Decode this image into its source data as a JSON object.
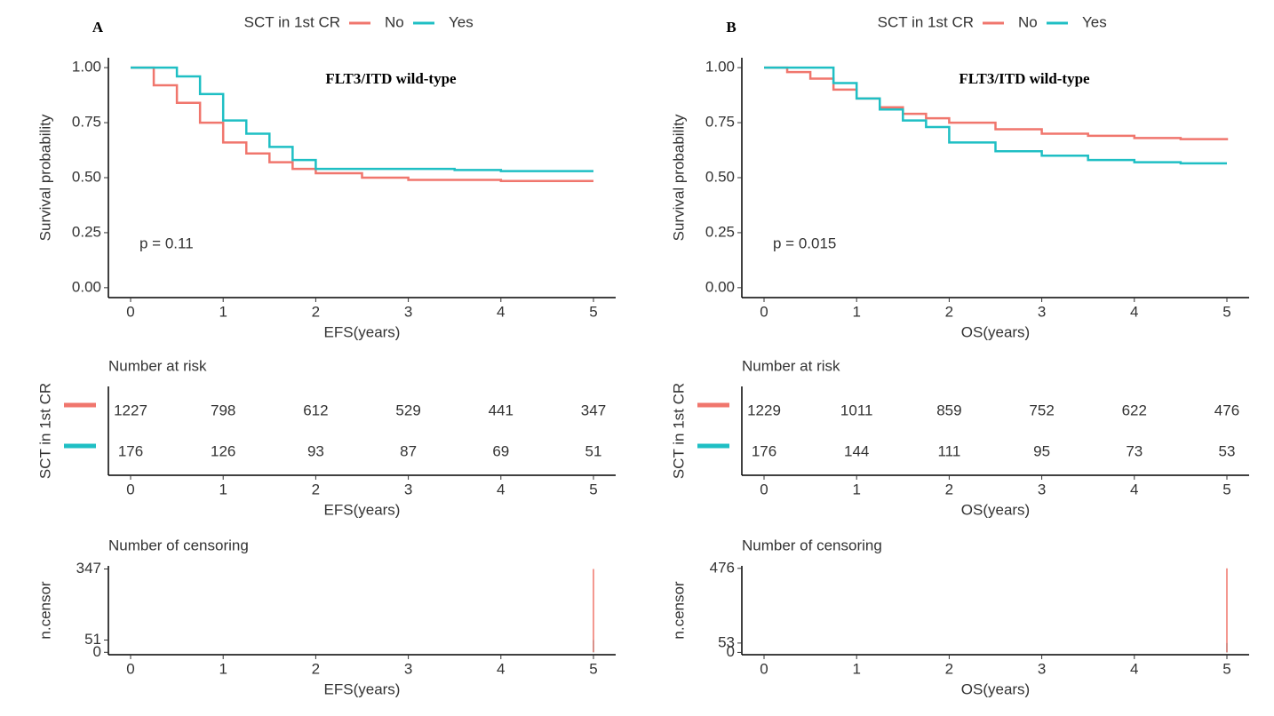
{
  "chart_data": [
    {
      "type": "step",
      "panel_label": "A",
      "title": "FLT3/ITD wild-type",
      "legend_title": "SCT in 1st CR",
      "annotation": "p = 0.11",
      "xlabel": "EFS(years)",
      "ylabel": "Survival probability",
      "xlim": [
        -0.24,
        5.24
      ],
      "xticks": [
        0,
        1,
        2,
        3,
        4,
        5
      ],
      "ylim": [
        -0.045,
        1.045
      ],
      "yticks": [
        {
          "value": 0,
          "label": "0.00"
        },
        {
          "value": 0.25,
          "label": "0.25"
        },
        {
          "value": 0.5,
          "label": "0.50"
        },
        {
          "value": 0.75,
          "label": "0.75"
        },
        {
          "value": 1,
          "label": "1.00"
        }
      ],
      "x": [
        0,
        0.25,
        0.5,
        0.75,
        1,
        1.25,
        1.5,
        1.75,
        2,
        2.5,
        3,
        3.5,
        4,
        4.5,
        5
      ],
      "series": [
        {
          "name": "No",
          "color": "#f0766d",
          "values": [
            1.0,
            0.92,
            0.84,
            0.75,
            0.66,
            0.61,
            0.57,
            0.54,
            0.52,
            0.5,
            0.49,
            0.49,
            0.485,
            0.485,
            0.485
          ]
        },
        {
          "name": "Yes",
          "color": "#1fbfc4",
          "values": [
            1.0,
            1.0,
            0.96,
            0.88,
            0.76,
            0.7,
            0.64,
            0.58,
            0.54,
            0.54,
            0.54,
            0.535,
            0.53,
            0.53,
            0.53
          ]
        }
      ]
    },
    {
      "type": "table",
      "title": "Number at risk",
      "xlabel": "EFS(years)",
      "ylabel": "SCT in 1st CR",
      "xlim": [
        -0.24,
        5.24
      ],
      "xticks": [
        0,
        1,
        2,
        3,
        4,
        5
      ],
      "x": [
        0,
        1,
        2,
        3,
        4,
        5
      ],
      "series": [
        {
          "color": "#f0766d",
          "values": [
            1227,
            798,
            612,
            529,
            441,
            347
          ]
        },
        {
          "color": "#1fbfc4",
          "values": [
            176,
            126,
            93,
            87,
            69,
            51
          ]
        }
      ]
    },
    {
      "type": "bar",
      "title": "Number of censoring",
      "xlabel": "EFS(years)",
      "ylabel": "n.censor",
      "xlim": [
        -0.24,
        5.24
      ],
      "xticks": [
        0,
        1,
        2,
        3,
        4,
        5
      ],
      "ylim": [
        -10,
        360
      ],
      "yticks": [
        0,
        51,
        347
      ],
      "x": [
        5
      ],
      "series": [
        {
          "color": "#1fbfc4",
          "values": [
            51
          ]
        },
        {
          "color": "#f0766d",
          "values": [
            347
          ]
        }
      ]
    },
    {
      "type": "step",
      "panel_label": "B",
      "title": "FLT3/ITD wild-type",
      "legend_title": "SCT in 1st CR",
      "annotation": "p = 0.015",
      "xlabel": "OS(years)",
      "ylabel": "Survival probability",
      "xlim": [
        -0.24,
        5.24
      ],
      "xticks": [
        0,
        1,
        2,
        3,
        4,
        5
      ],
      "ylim": [
        -0.045,
        1.045
      ],
      "yticks": [
        {
          "value": 0,
          "label": "0.00"
        },
        {
          "value": 0.25,
          "label": "0.25"
        },
        {
          "value": 0.5,
          "label": "0.50"
        },
        {
          "value": 0.75,
          "label": "0.75"
        },
        {
          "value": 1,
          "label": "1.00"
        }
      ],
      "x": [
        0,
        0.25,
        0.5,
        0.75,
        1,
        1.25,
        1.5,
        1.75,
        2,
        2.5,
        3,
        3.5,
        4,
        4.5,
        5
      ],
      "series": [
        {
          "name": "No",
          "color": "#f0766d",
          "values": [
            1.0,
            0.98,
            0.95,
            0.9,
            0.86,
            0.82,
            0.79,
            0.77,
            0.75,
            0.72,
            0.7,
            0.69,
            0.68,
            0.675,
            0.67
          ]
        },
        {
          "name": "Yes",
          "color": "#1fbfc4",
          "values": [
            1.0,
            1.0,
            1.0,
            0.93,
            0.86,
            0.81,
            0.76,
            0.73,
            0.66,
            0.62,
            0.6,
            0.58,
            0.57,
            0.565,
            0.565
          ]
        }
      ]
    },
    {
      "type": "table",
      "title": "Number at risk",
      "xlabel": "OS(years)",
      "ylabel": "SCT in 1st CR",
      "xlim": [
        -0.24,
        5.24
      ],
      "xticks": [
        0,
        1,
        2,
        3,
        4,
        5
      ],
      "x": [
        0,
        1,
        2,
        3,
        4,
        5
      ],
      "series": [
        {
          "color": "#f0766d",
          "values": [
            1229,
            1011,
            859,
            752,
            622,
            476
          ]
        },
        {
          "color": "#1fbfc4",
          "values": [
            176,
            144,
            111,
            95,
            73,
            53
          ]
        }
      ]
    },
    {
      "type": "bar",
      "title": "Number of censoring",
      "xlabel": "OS(years)",
      "ylabel": "n.censor",
      "xlim": [
        -0.24,
        5.24
      ],
      "xticks": [
        0,
        1,
        2,
        3,
        4,
        5
      ],
      "ylim": [
        -13,
        490
      ],
      "yticks": [
        0,
        53,
        476
      ],
      "x": [
        5
      ],
      "series": [
        {
          "color": "#1fbfc4",
          "values": [
            53
          ]
        },
        {
          "color": "#f0766d",
          "values": [
            476
          ]
        }
      ]
    }
  ]
}
